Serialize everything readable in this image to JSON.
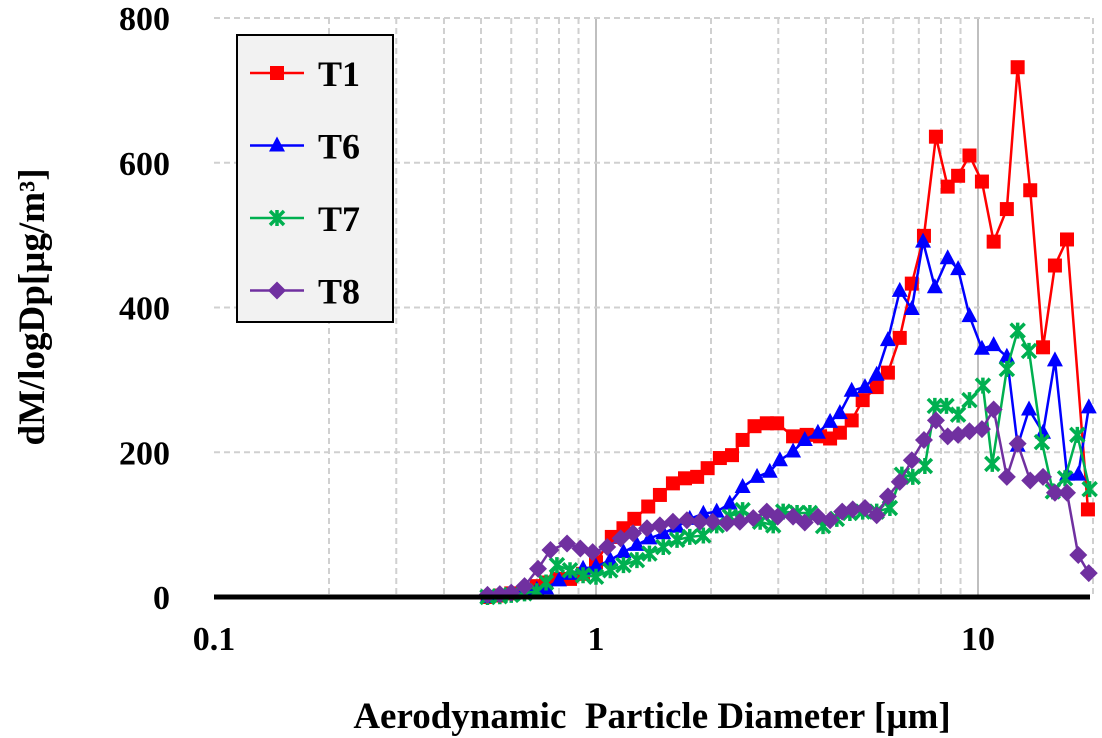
{
  "chart_data": {
    "type": "line",
    "xscale": "log",
    "xlabel": "Aerodynamic  Particle Diameter [µm]",
    "ylabel": "dM/logDp[µg/m³]",
    "xlim": [
      0.1,
      20
    ],
    "ylim": [
      0,
      800
    ],
    "xticks": [
      {
        "v": 0.1,
        "label": "0.1"
      },
      {
        "v": 1,
        "label": "1"
      },
      {
        "v": 10,
        "label": "10"
      }
    ],
    "yticks": [
      {
        "v": 0,
        "label": "0"
      },
      {
        "v": 200,
        "label": "200"
      },
      {
        "v": 400,
        "label": "400"
      },
      {
        "v": 600,
        "label": "600"
      },
      {
        "v": 800,
        "label": "800"
      }
    ],
    "grid": true,
    "legend_position": "top-left",
    "series": [
      {
        "name": "T1",
        "color": "#ff0000",
        "marker": "square",
        "x": [
          0.52,
          0.56,
          0.6,
          0.65,
          0.7,
          0.74,
          0.79,
          0.855,
          0.925,
          1.0,
          1.1,
          1.18,
          1.26,
          1.37,
          1.47,
          1.59,
          1.71,
          1.84,
          1.96,
          2.11,
          2.27,
          2.42,
          2.6,
          2.8,
          2.98,
          3.28,
          3.56,
          3.86,
          4.1,
          4.35,
          4.67,
          4.99,
          5.43,
          5.81,
          6.24,
          6.71,
          7.22,
          7.76,
          8.33,
          8.87,
          9.5,
          10.24,
          10.99,
          11.9,
          12.7,
          13.7,
          14.8,
          15.9,
          17.1,
          19.4
        ],
        "y": [
          0,
          2,
          5,
          8,
          15,
          20,
          25,
          25,
          32,
          48,
          83,
          95,
          108,
          125,
          141,
          157,
          164,
          166,
          178,
          192,
          196,
          217,
          236,
          240,
          240,
          222,
          224,
          222,
          219,
          227,
          244,
          272,
          290,
          310,
          358,
          433,
          499,
          636,
          567,
          582,
          610,
          574,
          491,
          536,
          732,
          562,
          345,
          458,
          494,
          121
        ]
      },
      {
        "name": "T6",
        "color": "#0000ff",
        "marker": "triangle",
        "x": [
          0.52,
          0.56,
          0.6,
          0.65,
          0.7,
          0.74,
          0.8,
          0.855,
          0.925,
          1.0,
          1.09,
          1.18,
          1.28,
          1.38,
          1.5,
          1.63,
          1.76,
          1.91,
          2.07,
          2.24,
          2.42,
          2.64,
          2.85,
          3.03,
          3.28,
          3.52,
          3.81,
          4.1,
          4.35,
          4.67,
          5.06,
          5.43,
          5.81,
          6.24,
          6.71,
          7.18,
          7.71,
          8.33,
          8.87,
          9.5,
          10.24,
          10.99,
          11.9,
          12.7,
          13.6,
          14.8,
          15.9,
          17.1,
          18.3,
          19.5
        ],
        "y": [
          0,
          2,
          5,
          8,
          10,
          12,
          23,
          32,
          39,
          42,
          51,
          62,
          72,
          81,
          88,
          97,
          108,
          115,
          118,
          129,
          152,
          166,
          173,
          189,
          201,
          217,
          227,
          242,
          254,
          285,
          290,
          307,
          355,
          423,
          398,
          491,
          428,
          468,
          453,
          388,
          343,
          348,
          332,
          209,
          259,
          227,
          327,
          169,
          169,
          262
        ]
      },
      {
        "name": "T7",
        "color": "#00b050",
        "marker": "x",
        "x": [
          0.52,
          0.56,
          0.6,
          0.65,
          0.7,
          0.74,
          0.79,
          0.855,
          0.925,
          1.0,
          1.09,
          1.18,
          1.28,
          1.38,
          1.5,
          1.63,
          1.76,
          1.91,
          2.07,
          2.24,
          2.42,
          2.69,
          2.91,
          3.09,
          3.36,
          3.63,
          3.93,
          4.27,
          4.62,
          4.99,
          5.43,
          5.88,
          6.32,
          6.75,
          7.26,
          7.71,
          8.27,
          8.87,
          9.5,
          10.3,
          10.9,
          11.9,
          12.7,
          13.6,
          14.7,
          15.7,
          16.9,
          18.2,
          19.6
        ],
        "y": [
          0,
          1,
          3,
          5,
          8,
          20,
          44,
          37,
          30,
          28,
          37,
          44,
          51,
          60,
          69,
          79,
          83,
          85,
          99,
          111,
          120,
          104,
          99,
          118,
          116,
          116,
          98,
          108,
          116,
          118,
          118,
          123,
          169,
          166,
          181,
          264,
          264,
          252,
          272,
          292,
          184,
          315,
          368,
          340,
          214,
          146,
          164,
          224,
          149
        ]
      },
      {
        "name": "T8",
        "color": "#7030a0",
        "marker": "diamond",
        "x": [
          0.52,
          0.56,
          0.6,
          0.65,
          0.705,
          0.76,
          0.84,
          0.91,
          0.98,
          1.07,
          1.16,
          1.25,
          1.36,
          1.47,
          1.59,
          1.73,
          1.87,
          2.02,
          2.2,
          2.38,
          2.58,
          2.8,
          2.99,
          3.28,
          3.52,
          3.81,
          4.1,
          4.41,
          4.7,
          5.06,
          5.43,
          5.81,
          6.24,
          6.71,
          7.22,
          7.76,
          8.33,
          8.87,
          9.5,
          10.24,
          10.99,
          11.9,
          12.7,
          13.7,
          14.8,
          15.9,
          17.1,
          18.3,
          19.5
        ],
        "y": [
          3,
          4,
          6,
          15,
          39,
          65,
          74,
          67,
          62,
          69,
          81,
          88,
          95,
          99,
          104,
          106,
          104,
          104,
          102,
          104,
          109,
          118,
          111,
          111,
          103,
          111,
          106,
          118,
          121,
          123,
          113,
          139,
          159,
          189,
          217,
          244,
          222,
          224,
          229,
          232,
          259,
          166,
          212,
          161,
          166,
          144,
          144,
          58,
          33
        ]
      }
    ]
  }
}
